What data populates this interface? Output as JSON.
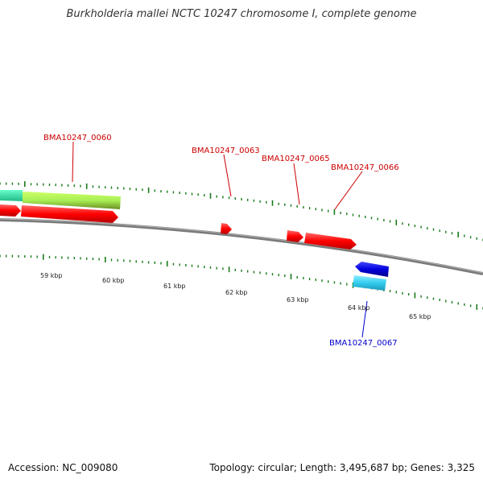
{
  "title": "Burkholderia mallei NCTC 10247 chromosome I, complete genome",
  "footer": {
    "accession": "Accession: NC_009080",
    "summary": "Topology: circular; Length: 3,495,687 bp; Genes: 3,325"
  },
  "scale_labels": [
    "59 kbp",
    "60 kbp",
    "61 kbp",
    "62 kbp",
    "63 kbp",
    "64 kbp",
    "65 kbp"
  ],
  "gene_labels": [
    {
      "name": "BMA10247_0060",
      "color": "#cc0000"
    },
    {
      "name": "BMA10247_0063",
      "color": "#cc0000"
    },
    {
      "name": "BMA10247_0065",
      "color": "#cc0000"
    },
    {
      "name": "BMA10247_0066",
      "color": "#cc0000"
    },
    {
      "name": "BMA10247_0067",
      "color": "#0000cc"
    }
  ],
  "colors": {
    "backbone": "#7a7a7a",
    "tick": "#1a7a1a",
    "forward_cds": "#ff0000",
    "reverse_cds": "#0000dd",
    "rna_light_green": "#a8ef55",
    "rna_dark_green": "#6b8e23",
    "teal": "#33e6b0",
    "cyan": "#33ccee"
  }
}
